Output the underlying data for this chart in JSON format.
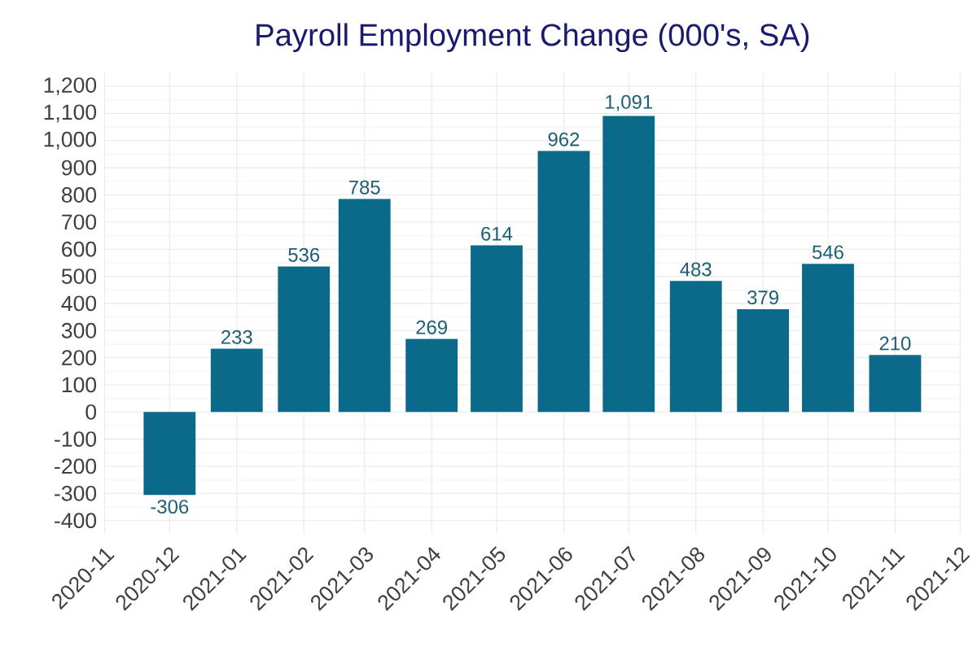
{
  "chart_data": {
    "type": "bar",
    "title": "Payroll Employment Change (000's, SA)",
    "x": [
      "2020-12",
      "2021-01",
      "2021-02",
      "2021-03",
      "2021-04",
      "2021-05",
      "2021-06",
      "2021-07",
      "2021-08",
      "2021-09",
      "2021-10",
      "2021-11"
    ],
    "values": [
      -306,
      233,
      536,
      785,
      269,
      614,
      962,
      1091,
      483,
      379,
      546,
      210
    ],
    "value_labels": [
      "-306",
      "233",
      "536",
      "785",
      "269",
      "614",
      "962",
      "1,091",
      "483",
      "379",
      "546",
      "210"
    ],
    "color": "#0b6a8a",
    "xlim": [
      "2020-11",
      "2021-12"
    ],
    "xticks": [
      "2020-11",
      "2020-12",
      "2021-01",
      "2021-02",
      "2021-03",
      "2021-04",
      "2021-05",
      "2021-06",
      "2021-07",
      "2021-08",
      "2021-09",
      "2021-10",
      "2021-11",
      "2021-12"
    ],
    "ylim": [
      -450,
      1250
    ],
    "yticks": [
      -400,
      -300,
      -200,
      -100,
      0,
      100,
      200,
      300,
      400,
      500,
      600,
      700,
      800,
      900,
      {
        "value": 1000,
        "label": "1,000"
      },
      {
        "value": 1100,
        "label": "1,100"
      },
      {
        "value": 1200,
        "label": "1,200"
      }
    ],
    "grid": true
  }
}
